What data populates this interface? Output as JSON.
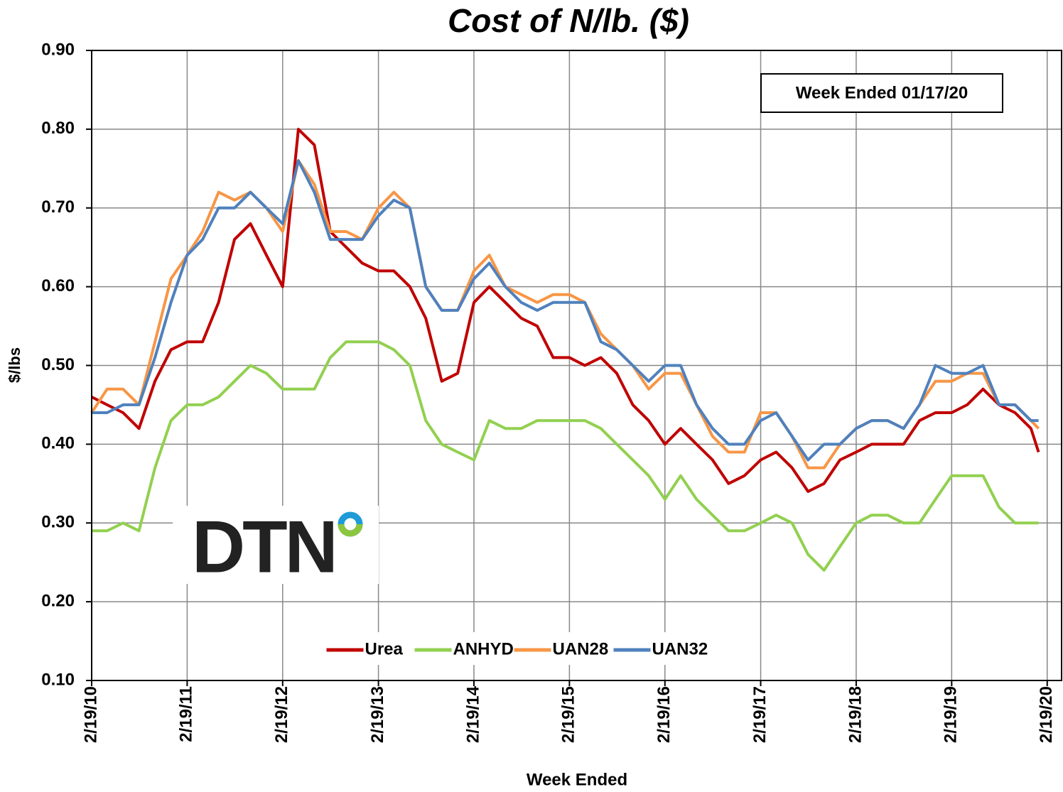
{
  "chart_data": {
    "type": "line",
    "title": "Cost of N/lb. ($)",
    "ylabel": "$/lbs",
    "xlabel": "Week Ended",
    "annotation": "Week Ended 01/17/20",
    "logo": "DTN",
    "legend": "lower center",
    "grid": true,
    "ylim": [
      0.1,
      0.9
    ],
    "yticks": [
      {
        "value": 0.1,
        "label": "0.10"
      },
      {
        "value": 0.2,
        "label": "0.20"
      },
      {
        "value": 0.3,
        "label": "0.30"
      },
      {
        "value": 0.4,
        "label": "0.40"
      },
      {
        "value": 0.5,
        "label": "0.50"
      },
      {
        "value": 0.6,
        "label": "0.60"
      },
      {
        "value": 0.7,
        "label": "0.70"
      },
      {
        "value": 0.8,
        "label": "0.80"
      },
      {
        "value": 0.9,
        "label": "0.90"
      }
    ],
    "xlim": [
      "2/19/10",
      "4/14/20"
    ],
    "xticks": [
      "2/19/10",
      "2/19/11",
      "2/19/12",
      "2/19/13",
      "2/19/14",
      "2/19/15",
      "2/19/16",
      "2/19/17",
      "2/19/18",
      "2/19/19",
      "2/19/20"
    ],
    "x": [
      "2/19/10",
      "4/19/10",
      "6/19/10",
      "8/19/10",
      "10/19/10",
      "12/19/10",
      "2/19/11",
      "4/19/11",
      "6/19/11",
      "8/19/11",
      "10/19/11",
      "12/19/11",
      "2/19/12",
      "4/19/12",
      "6/19/12",
      "8/19/12",
      "10/19/12",
      "12/19/12",
      "2/19/13",
      "4/19/13",
      "6/19/13",
      "8/19/13",
      "10/19/13",
      "12/19/13",
      "2/19/14",
      "4/19/14",
      "6/19/14",
      "8/19/14",
      "10/19/14",
      "12/19/14",
      "2/19/15",
      "4/19/15",
      "6/19/15",
      "8/19/15",
      "10/19/15",
      "12/19/15",
      "2/19/16",
      "4/19/16",
      "6/19/16",
      "8/19/16",
      "10/19/16",
      "12/19/16",
      "2/19/17",
      "4/19/17",
      "6/19/17",
      "8/19/17",
      "10/19/17",
      "12/19/17",
      "2/19/18",
      "4/19/18",
      "6/19/18",
      "8/19/18",
      "10/19/18",
      "12/19/18",
      "2/19/19",
      "4/19/19",
      "6/19/19",
      "8/19/19",
      "10/19/19",
      "12/19/19",
      "1/17/20"
    ],
    "series": [
      {
        "name": "Urea",
        "color": "#c00000",
        "values": [
          0.46,
          0.45,
          0.44,
          0.42,
          0.48,
          0.52,
          0.53,
          0.53,
          0.58,
          0.66,
          0.68,
          0.64,
          0.6,
          0.8,
          0.78,
          0.67,
          0.65,
          0.63,
          0.62,
          0.62,
          0.6,
          0.56,
          0.48,
          0.49,
          0.58,
          0.6,
          0.58,
          0.56,
          0.55,
          0.51,
          0.51,
          0.5,
          0.51,
          0.49,
          0.45,
          0.43,
          0.4,
          0.42,
          0.4,
          0.38,
          0.35,
          0.36,
          0.38,
          0.39,
          0.37,
          0.34,
          0.35,
          0.38,
          0.39,
          0.4,
          0.4,
          0.4,
          0.43,
          0.44,
          0.44,
          0.45,
          0.47,
          0.45,
          0.44,
          0.42,
          0.39
        ]
      },
      {
        "name": "ANHYD",
        "color": "#92d050",
        "values": [
          0.29,
          0.29,
          0.3,
          0.29,
          0.37,
          0.43,
          0.45,
          0.45,
          0.46,
          0.48,
          0.5,
          0.49,
          0.47,
          0.47,
          0.47,
          0.51,
          0.53,
          0.53,
          0.53,
          0.52,
          0.5,
          0.43,
          0.4,
          0.39,
          0.38,
          0.43,
          0.42,
          0.42,
          0.43,
          0.43,
          0.43,
          0.43,
          0.42,
          0.4,
          0.38,
          0.36,
          0.33,
          0.36,
          0.33,
          0.31,
          0.29,
          0.29,
          0.3,
          0.31,
          0.3,
          0.26,
          0.24,
          0.27,
          0.3,
          0.31,
          0.31,
          0.3,
          0.3,
          0.33,
          0.36,
          0.36,
          0.36,
          0.32,
          0.3,
          0.3,
          0.3
        ]
      },
      {
        "name": "UAN28",
        "color": "#f79646",
        "values": [
          0.44,
          0.47,
          0.47,
          0.45,
          0.53,
          0.61,
          0.64,
          0.67,
          0.72,
          0.71,
          0.72,
          0.7,
          0.67,
          0.76,
          0.73,
          0.67,
          0.67,
          0.66,
          0.7,
          0.72,
          0.7,
          0.6,
          0.57,
          0.57,
          0.62,
          0.64,
          0.6,
          0.59,
          0.58,
          0.59,
          0.59,
          0.58,
          0.54,
          0.52,
          0.5,
          0.47,
          0.49,
          0.49,
          0.45,
          0.41,
          0.39,
          0.39,
          0.44,
          0.44,
          0.41,
          0.37,
          0.37,
          0.4,
          0.42,
          0.43,
          0.43,
          0.42,
          0.45,
          0.48,
          0.48,
          0.49,
          0.49,
          0.45,
          0.45,
          0.43,
          0.42
        ]
      },
      {
        "name": "UAN32",
        "color": "#4f81bd",
        "values": [
          0.44,
          0.44,
          0.45,
          0.45,
          0.51,
          0.58,
          0.64,
          0.66,
          0.7,
          0.7,
          0.72,
          0.7,
          0.68,
          0.76,
          0.72,
          0.66,
          0.66,
          0.66,
          0.69,
          0.71,
          0.7,
          0.6,
          0.57,
          0.57,
          0.61,
          0.63,
          0.6,
          0.58,
          0.57,
          0.58,
          0.58,
          0.58,
          0.53,
          0.52,
          0.5,
          0.48,
          0.5,
          0.5,
          0.45,
          0.42,
          0.4,
          0.4,
          0.43,
          0.44,
          0.41,
          0.38,
          0.4,
          0.4,
          0.42,
          0.43,
          0.43,
          0.42,
          0.45,
          0.5,
          0.49,
          0.49,
          0.5,
          0.45,
          0.45,
          0.43,
          0.43
        ]
      }
    ]
  }
}
